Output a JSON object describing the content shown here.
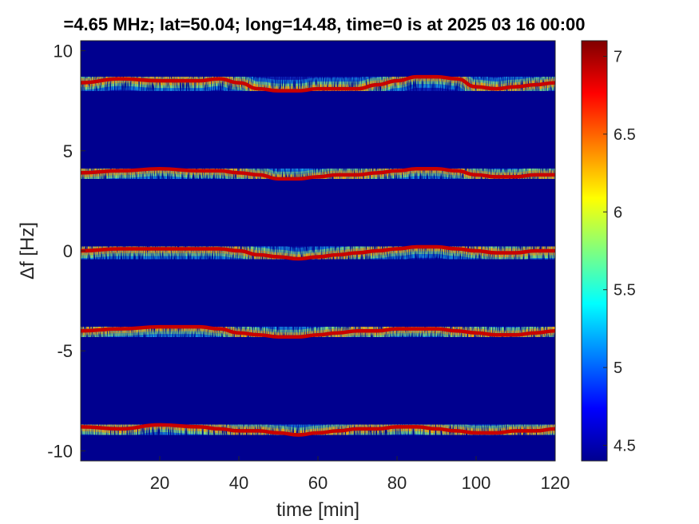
{
  "chart_data": {
    "type": "heatmap",
    "title": "=4.65 MHz;  lat=50.04; long=14.48, time=0 is at 2025 03 16 00:00",
    "xlabel": "time [min]",
    "ylabel": "Δf [Hz]",
    "xlim": [
      0,
      120
    ],
    "ylim": [
      -10.5,
      10.5
    ],
    "x_ticks": [
      20,
      40,
      60,
      80,
      100,
      120
    ],
    "x_tick_labels": [
      "20",
      "40",
      "60",
      "80",
      "100",
      "120"
    ],
    "y_ticks": [
      10,
      5,
      0,
      -5,
      -10
    ],
    "y_tick_labels": [
      "10",
      "5",
      "0",
      "-5",
      "-10"
    ],
    "grid": false,
    "colormap": "jet",
    "background_color": "#00008f",
    "colorbar": {
      "placement": "right",
      "range": [
        4.4,
        7.1
      ],
      "ticks": [
        7,
        6.5,
        6,
        5.5,
        5,
        4.5
      ],
      "tick_labels": [
        "7",
        "6.5",
        "6",
        "5.5",
        "5",
        "4.5"
      ]
    },
    "series": [
      {
        "center_hz": 8.5,
        "x": [
          0,
          10,
          20,
          30,
          35,
          40,
          45,
          50,
          55,
          60,
          65,
          70,
          75,
          80,
          85,
          90,
          95,
          100,
          105,
          110,
          115,
          120
        ],
        "y": [
          8.4,
          8.6,
          8.5,
          8.5,
          8.6,
          8.4,
          8.1,
          8.0,
          8.0,
          8.1,
          8.1,
          8.1,
          8.3,
          8.5,
          8.7,
          8.7,
          8.6,
          8.2,
          8.1,
          8.2,
          8.3,
          8.4
        ]
      },
      {
        "center_hz": 4.0,
        "x": [
          0,
          10,
          20,
          30,
          35,
          40,
          45,
          50,
          55,
          60,
          65,
          70,
          75,
          80,
          85,
          90,
          95,
          100,
          105,
          110,
          115,
          120
        ],
        "y": [
          3.9,
          4.0,
          4.1,
          4.0,
          4.0,
          3.9,
          3.8,
          3.6,
          3.6,
          3.7,
          3.8,
          3.8,
          3.9,
          4.0,
          4.1,
          4.1,
          4.0,
          3.8,
          3.7,
          3.7,
          3.8,
          3.8
        ]
      },
      {
        "center_hz": 0.0,
        "x": [
          0,
          10,
          20,
          30,
          35,
          40,
          45,
          50,
          55,
          60,
          65,
          70,
          75,
          80,
          85,
          90,
          95,
          100,
          105,
          110,
          115,
          120
        ],
        "y": [
          0.0,
          0.1,
          0.1,
          0.1,
          0.1,
          0.0,
          -0.2,
          -0.3,
          -0.4,
          -0.3,
          -0.2,
          -0.1,
          0.0,
          0.1,
          0.2,
          0.2,
          0.1,
          0.0,
          -0.1,
          -0.1,
          0.0,
          0.0
        ]
      },
      {
        "center_hz": -4.0,
        "x": [
          0,
          10,
          20,
          30,
          35,
          40,
          45,
          50,
          55,
          60,
          65,
          70,
          75,
          80,
          85,
          90,
          95,
          100,
          105,
          110,
          115,
          120
        ],
        "y": [
          -4.0,
          -3.9,
          -3.8,
          -3.8,
          -3.9,
          -4.1,
          -4.2,
          -4.3,
          -4.3,
          -4.2,
          -4.1,
          -4.0,
          -4.0,
          -3.9,
          -3.9,
          -3.9,
          -4.0,
          -4.1,
          -4.2,
          -4.2,
          -4.1,
          -4.0
        ]
      },
      {
        "center_hz": -8.8,
        "x": [
          0,
          10,
          20,
          30,
          35,
          40,
          45,
          50,
          55,
          60,
          65,
          70,
          75,
          80,
          85,
          90,
          95,
          100,
          105,
          110,
          115,
          120
        ],
        "y": [
          -8.8,
          -8.9,
          -8.7,
          -8.8,
          -8.9,
          -9.0,
          -9.0,
          -9.1,
          -9.2,
          -9.1,
          -9.0,
          -8.9,
          -8.9,
          -8.8,
          -8.8,
          -8.9,
          -9.0,
          -9.1,
          -9.1,
          -9.0,
          -9.0,
          -8.9
        ]
      }
    ]
  }
}
